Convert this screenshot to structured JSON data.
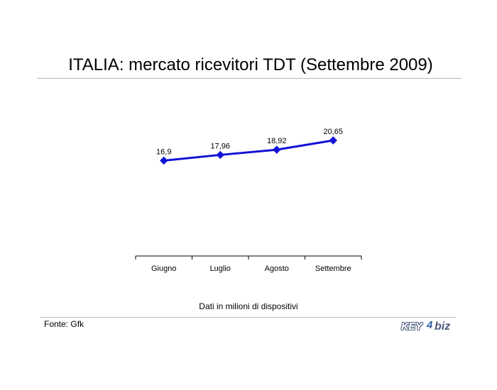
{
  "title": "ITALIA: mercato ricevitori TDT (Settembre 2009)",
  "note": "Dati in milioni di dispositivi",
  "source": "Fonte: Gfk",
  "logo": {
    "key": "KEY",
    "four": "4",
    "biz": "biz"
  },
  "colors": {
    "series": "#1212d6",
    "rule": "#b8b8b8",
    "axis": "#000000"
  },
  "chart_data": {
    "type": "line",
    "title": "ITALIA: mercato ricevitori TDT (Settembre 2009)",
    "categories": [
      "Giugno",
      "Luglio",
      "Agosto",
      "Settembre"
    ],
    "series": [
      {
        "values": [
          16.9,
          17.96,
          18.92,
          20.65
        ],
        "labels": [
          "16,9",
          "17,96",
          "18,92",
          "20,65"
        ]
      }
    ],
    "xlabel": "",
    "ylabel": "",
    "y_axis_visible": false,
    "grid": false,
    "legend": "none",
    "marker": "diamond"
  }
}
